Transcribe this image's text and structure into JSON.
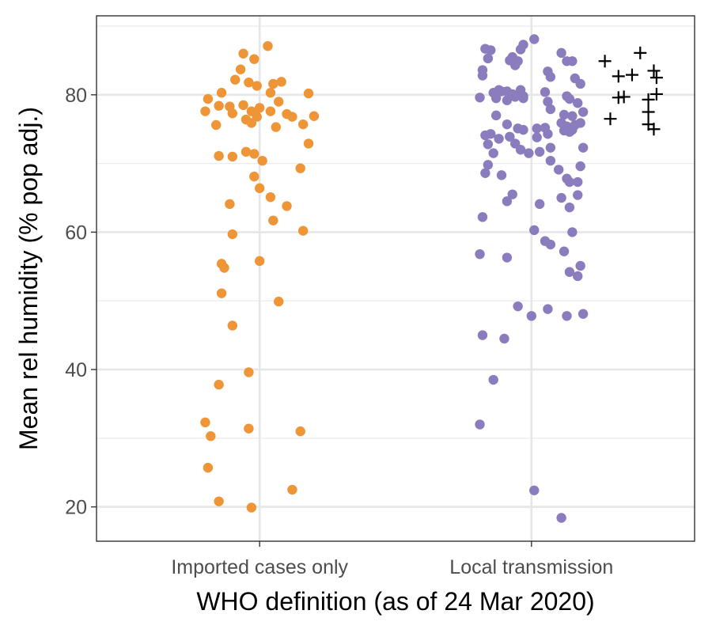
{
  "chart_data": {
    "type": "scatter",
    "xlabel": "WHO definition (as of 24 Mar 2020)",
    "ylabel": "Mean rel humidity (% pop adj.)",
    "categories": [
      "Imported cases only",
      "Local transmission"
    ],
    "ylim": [
      15,
      91.5
    ],
    "yticks": [
      20,
      40,
      60,
      80
    ],
    "grid": true,
    "legend": "none",
    "colors": {
      "imported": "#ee9537",
      "local": "#8b7dbd",
      "plus": "#000000"
    },
    "series": [
      {
        "category": "Imported cases only",
        "marker": "circle",
        "color": "#ee9537",
        "points": [
          {
            "x": -0.19,
            "y": 79.4
          },
          {
            "x": -0.14,
            "y": 80.3
          },
          {
            "x": -0.06,
            "y": 86.0
          },
          {
            "x": -0.02,
            "y": 85.2
          },
          {
            "x": 0.03,
            "y": 87.1
          },
          {
            "x": -0.09,
            "y": 82.2
          },
          {
            "x": -0.07,
            "y": 83.7
          },
          {
            "x": -0.04,
            "y": 81.8
          },
          {
            "x": -0.01,
            "y": 81.3
          },
          {
            "x": 0.05,
            "y": 81.6
          },
          {
            "x": 0.08,
            "y": 81.9
          },
          {
            "x": 0.04,
            "y": 80.3
          },
          {
            "x": 0.18,
            "y": 80.2
          },
          {
            "x": -0.2,
            "y": 77.6
          },
          {
            "x": -0.15,
            "y": 78.4
          },
          {
            "x": -0.11,
            "y": 78.3
          },
          {
            "x": -0.06,
            "y": 78.5
          },
          {
            "x": -0.03,
            "y": 77.6
          },
          {
            "x": 0.0,
            "y": 78.1
          },
          {
            "x": 0.04,
            "y": 77.6
          },
          {
            "x": 0.07,
            "y": 79.0
          },
          {
            "x": 0.1,
            "y": 77.2
          },
          {
            "x": 0.12,
            "y": 76.8
          },
          {
            "x": 0.2,
            "y": 76.9
          },
          {
            "x": -0.16,
            "y": 75.6
          },
          {
            "x": -0.1,
            "y": 77.3
          },
          {
            "x": -0.05,
            "y": 76.4
          },
          {
            "x": -0.03,
            "y": 75.9
          },
          {
            "x": -0.01,
            "y": 76.8
          },
          {
            "x": 0.06,
            "y": 75.3
          },
          {
            "x": 0.16,
            "y": 75.7
          },
          {
            "x": 0.18,
            "y": 72.9
          },
          {
            "x": -0.15,
            "y": 71.1
          },
          {
            "x": -0.1,
            "y": 71.0
          },
          {
            "x": -0.05,
            "y": 71.7
          },
          {
            "x": -0.02,
            "y": 71.4
          },
          {
            "x": 0.01,
            "y": 70.4
          },
          {
            "x": 0.15,
            "y": 69.3
          },
          {
            "x": -0.02,
            "y": 68.1
          },
          {
            "x": 0.0,
            "y": 66.4
          },
          {
            "x": 0.04,
            "y": 65.1
          },
          {
            "x": 0.1,
            "y": 63.8
          },
          {
            "x": -0.11,
            "y": 64.1
          },
          {
            "x": 0.05,
            "y": 61.7
          },
          {
            "x": 0.16,
            "y": 60.2
          },
          {
            "x": -0.1,
            "y": 59.7
          },
          {
            "x": -0.14,
            "y": 55.4
          },
          {
            "x": -0.13,
            "y": 54.8
          },
          {
            "x": 0.0,
            "y": 55.8
          },
          {
            "x": -0.14,
            "y": 51.1
          },
          {
            "x": 0.07,
            "y": 49.9
          },
          {
            "x": -0.1,
            "y": 46.4
          },
          {
            "x": -0.04,
            "y": 39.6
          },
          {
            "x": -0.15,
            "y": 37.8
          },
          {
            "x": -0.2,
            "y": 32.3
          },
          {
            "x": -0.18,
            "y": 30.3
          },
          {
            "x": -0.04,
            "y": 31.4
          },
          {
            "x": 0.15,
            "y": 31.0
          },
          {
            "x": -0.19,
            "y": 25.7
          },
          {
            "x": 0.12,
            "y": 22.5
          },
          {
            "x": -0.15,
            "y": 20.8
          },
          {
            "x": -0.03,
            "y": 19.9
          }
        ]
      },
      {
        "category": "Local transmission",
        "marker": "circle",
        "color": "#8b7dbd",
        "points": [
          {
            "x": -0.17,
            "y": 86.7
          },
          {
            "x": -0.16,
            "y": 85.3
          },
          {
            "x": -0.15,
            "y": 86.5
          },
          {
            "x": -0.07,
            "y": 85.5
          },
          {
            "x": -0.05,
            "y": 84.9
          },
          {
            "x": -0.04,
            "y": 86.6
          },
          {
            "x": -0.03,
            "y": 87.3
          },
          {
            "x": 0.01,
            "y": 88.1
          },
          {
            "x": -0.08,
            "y": 85.0
          },
          {
            "x": -0.06,
            "y": 84.3
          },
          {
            "x": 0.11,
            "y": 86.1
          },
          {
            "x": 0.13,
            "y": 84.9
          },
          {
            "x": 0.15,
            "y": 84.9
          },
          {
            "x": -0.18,
            "y": 83.6
          },
          {
            "x": -0.18,
            "y": 82.8
          },
          {
            "x": 0.06,
            "y": 83.4
          },
          {
            "x": 0.07,
            "y": 82.6
          },
          {
            "x": 0.16,
            "y": 82.4
          },
          {
            "x": 0.18,
            "y": 81.6
          },
          {
            "x": -0.14,
            "y": 80.3
          },
          {
            "x": -0.12,
            "y": 80.7
          },
          {
            "x": -0.11,
            "y": 80.5
          },
          {
            "x": -0.09,
            "y": 80.5
          },
          {
            "x": -0.07,
            "y": 80.1
          },
          {
            "x": -0.06,
            "y": 79.7
          },
          {
            "x": -0.04,
            "y": 80.7
          },
          {
            "x": -0.03,
            "y": 79.8
          },
          {
            "x": 0.05,
            "y": 80.4
          },
          {
            "x": 0.13,
            "y": 79.8
          },
          {
            "x": -0.19,
            "y": 79.6
          },
          {
            "x": -0.13,
            "y": 79.5
          },
          {
            "x": -0.09,
            "y": 79.2
          },
          {
            "x": -0.03,
            "y": 79.5
          },
          {
            "x": 0.06,
            "y": 79.0
          },
          {
            "x": 0.14,
            "y": 79.4
          },
          {
            "x": 0.17,
            "y": 78.8
          },
          {
            "x": 0.07,
            "y": 77.9
          },
          {
            "x": 0.12,
            "y": 77.1
          },
          {
            "x": 0.15,
            "y": 76.9
          },
          {
            "x": 0.19,
            "y": 77.5
          },
          {
            "x": -0.13,
            "y": 77.0
          },
          {
            "x": 0.11,
            "y": 75.9
          },
          {
            "x": 0.13,
            "y": 75.4
          },
          {
            "x": 0.16,
            "y": 75.6
          },
          {
            "x": 0.18,
            "y": 75.9
          },
          {
            "x": -0.09,
            "y": 75.7
          },
          {
            "x": -0.05,
            "y": 75.1
          },
          {
            "x": -0.03,
            "y": 74.9
          },
          {
            "x": 0.02,
            "y": 75.1
          },
          {
            "x": 0.05,
            "y": 75.2
          },
          {
            "x": 0.12,
            "y": 74.8
          },
          {
            "x": 0.14,
            "y": 74.6
          },
          {
            "x": 0.15,
            "y": 74.9
          },
          {
            "x": -0.17,
            "y": 74.1
          },
          {
            "x": -0.16,
            "y": 72.8
          },
          {
            "x": -0.15,
            "y": 74.3
          },
          {
            "x": -0.12,
            "y": 73.6
          },
          {
            "x": -0.08,
            "y": 73.9
          },
          {
            "x": -0.06,
            "y": 72.9
          },
          {
            "x": 0.02,
            "y": 73.8
          },
          {
            "x": 0.06,
            "y": 74.3
          },
          {
            "x": -0.14,
            "y": 71.5
          },
          {
            "x": -0.04,
            "y": 72.0
          },
          {
            "x": 0.03,
            "y": 71.7
          },
          {
            "x": 0.07,
            "y": 72.3
          },
          {
            "x": 0.19,
            "y": 72.3
          },
          {
            "x": -0.01,
            "y": 71.5
          },
          {
            "x": 0.07,
            "y": 70.4
          },
          {
            "x": -0.16,
            "y": 69.8
          },
          {
            "x": -0.17,
            "y": 68.6
          },
          {
            "x": -0.11,
            "y": 68.3
          },
          {
            "x": 0.1,
            "y": 69.1
          },
          {
            "x": 0.18,
            "y": 69.6
          },
          {
            "x": 0.13,
            "y": 67.8
          },
          {
            "x": 0.14,
            "y": 67.3
          },
          {
            "x": 0.17,
            "y": 67.3
          },
          {
            "x": -0.07,
            "y": 65.5
          },
          {
            "x": 0.11,
            "y": 65.0
          },
          {
            "x": 0.17,
            "y": 65.4
          },
          {
            "x": -0.09,
            "y": 64.5
          },
          {
            "x": 0.03,
            "y": 64.1
          },
          {
            "x": 0.14,
            "y": 63.6
          },
          {
            "x": -0.18,
            "y": 62.2
          },
          {
            "x": 0.01,
            "y": 60.3
          },
          {
            "x": 0.15,
            "y": 60.0
          },
          {
            "x": 0.05,
            "y": 58.7
          },
          {
            "x": 0.07,
            "y": 58.2
          },
          {
            "x": -0.19,
            "y": 56.8
          },
          {
            "x": -0.09,
            "y": 56.3
          },
          {
            "x": 0.12,
            "y": 57.2
          },
          {
            "x": 0.18,
            "y": 55.1
          },
          {
            "x": 0.14,
            "y": 54.2
          },
          {
            "x": 0.17,
            "y": 53.6
          },
          {
            "x": -0.05,
            "y": 49.2
          },
          {
            "x": 0.06,
            "y": 48.8
          },
          {
            "x": 0.0,
            "y": 47.8
          },
          {
            "x": 0.13,
            "y": 47.8
          },
          {
            "x": 0.19,
            "y": 48.1
          },
          {
            "x": -0.18,
            "y": 45.0
          },
          {
            "x": -0.1,
            "y": 44.5
          },
          {
            "x": -0.14,
            "y": 38.5
          },
          {
            "x": -0.19,
            "y": 32.0
          },
          {
            "x": 0.01,
            "y": 22.4
          },
          {
            "x": 0.11,
            "y": 18.4
          }
        ]
      },
      {
        "category": "Local transmission",
        "marker": "plus",
        "color": "#000000",
        "points": [
          {
            "x": 0.27,
            "y": 84.9
          },
          {
            "x": 0.4,
            "y": 86.1
          },
          {
            "x": 0.32,
            "y": 82.7
          },
          {
            "x": 0.37,
            "y": 82.9
          },
          {
            "x": 0.45,
            "y": 83.5
          },
          {
            "x": 0.46,
            "y": 82.5
          },
          {
            "x": 0.32,
            "y": 79.6
          },
          {
            "x": 0.34,
            "y": 79.7
          },
          {
            "x": 0.43,
            "y": 79.3
          },
          {
            "x": 0.46,
            "y": 80.1
          },
          {
            "x": 0.29,
            "y": 76.5
          },
          {
            "x": 0.43,
            "y": 77.5
          },
          {
            "x": 0.43,
            "y": 75.7
          },
          {
            "x": 0.45,
            "y": 75.0
          }
        ]
      }
    ]
  }
}
